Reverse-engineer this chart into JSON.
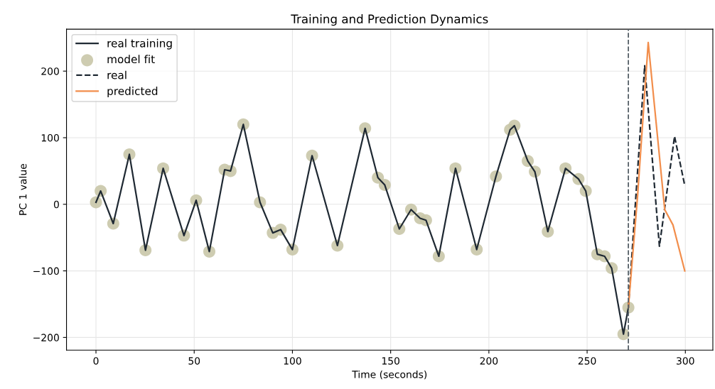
{
  "chart_data": {
    "type": "line",
    "title": "Training and Prediction Dynamics",
    "xlabel": "Time (seconds)",
    "ylabel": "PC 1 value",
    "xlim": [
      -15,
      314
    ],
    "xticks": [
      0,
      50,
      100,
      150,
      200,
      250,
      300
    ],
    "ylim": [
      -219,
      263
    ],
    "yticks": [
      {
        "value": -200,
        "label": "−200"
      },
      {
        "value": -100,
        "label": "−100"
      },
      0,
      100,
      200
    ],
    "grid": true,
    "legend": "top left",
    "series": [
      {
        "name": "real training",
        "color": "#1f2933",
        "line_style": "solid",
        "x": [
          0,
          2.4,
          8.8,
          17,
          25.2,
          34.2,
          44.8,
          51,
          57.7,
          65.5,
          68.5,
          75,
          83.5,
          90,
          94,
          100,
          110,
          122.9,
          137,
          143.5,
          147,
          154.4,
          160.4,
          165,
          168,
          174.5,
          183,
          193.8,
          203.6,
          210.8,
          213,
          219.8,
          223.4,
          230,
          239,
          245.6,
          249.3,
          255.2,
          258.9,
          262.5,
          268.5,
          271
        ],
        "values": [
          3,
          20,
          -29,
          75,
          -69,
          54,
          -47,
          6,
          -71,
          52,
          50,
          120,
          3,
          -43,
          -38,
          -68,
          73,
          -62,
          114,
          40,
          29,
          -37,
          -8,
          -21,
          -24,
          -78,
          54,
          -68,
          42,
          112,
          118,
          65,
          49,
          -41,
          54,
          38,
          20,
          -75,
          -78,
          -96,
          -195,
          -155
        ]
      },
      {
        "name": "model fit",
        "type": "scatter",
        "color": "#c9c6a9",
        "marker": "circle",
        "x": [
          0,
          2.4,
          8.8,
          17,
          25.2,
          34.2,
          44.8,
          51,
          57.7,
          65.5,
          68.5,
          75,
          83.5,
          90,
          94,
          100,
          110,
          122.9,
          137,
          143.5,
          147,
          154.4,
          160.4,
          165,
          168,
          174.5,
          183,
          193.8,
          203.6,
          210.8,
          213,
          219.8,
          223.4,
          230,
          239,
          245.6,
          249.3,
          255.2,
          258.9,
          262.5,
          268.5,
          271
        ],
        "values": [
          3,
          20,
          -29,
          75,
          -69,
          54,
          -47,
          6,
          -71,
          52,
          50,
          120,
          3,
          -43,
          -38,
          -68,
          73,
          -62,
          114,
          40,
          29,
          -37,
          -8,
          -21,
          -24,
          -78,
          54,
          -68,
          42,
          112,
          118,
          65,
          49,
          -41,
          54,
          38,
          20,
          -75,
          -78,
          -96,
          -195,
          -155
        ]
      },
      {
        "name": "real",
        "color": "#1f2933",
        "line_style": "dashed",
        "x": [
          271,
          279.3,
          286.8,
          294.5,
          299.5
        ],
        "values": [
          -155,
          208,
          -63,
          102,
          31
        ]
      },
      {
        "name": "predicted",
        "color": "#f28e4c",
        "line_style": "solid",
        "x": [
          271,
          275.7,
          281.1,
          289.5,
          293.7,
          299.7
        ],
        "values": [
          -155,
          13,
          243,
          -8,
          -31,
          -100
        ]
      }
    ],
    "ref_lines": [
      {
        "axis": "x",
        "value": 271,
        "color": "#555f66",
        "line_style": "dashed"
      }
    ]
  }
}
